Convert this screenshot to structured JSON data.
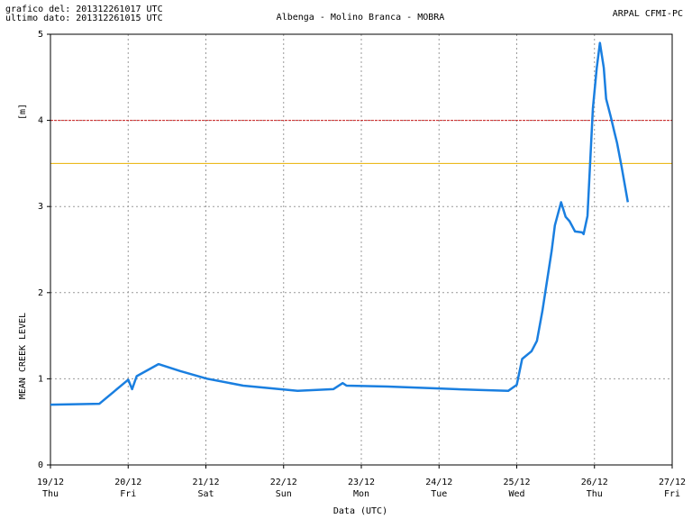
{
  "chart_data": {
    "type": "line",
    "header_left": [
      "grafico del: 201312261017 UTC",
      "ultimo dato: 201312261015 UTC"
    ],
    "title": "Albenga - Molino Branca - MOBRA",
    "header_right": "ARPAL CFMI-PC",
    "y_unit_label": "[m]",
    "y_label": "MEAN CREEK LEVEL",
    "x_label": "Data (UTC)",
    "xlim": [
      0,
      8
    ],
    "xticks": [
      {
        "value": 0,
        "label": "19/12"
      },
      {
        "value": 1,
        "label": "20/12"
      },
      {
        "value": 2,
        "label": "21/12"
      },
      {
        "value": 3,
        "label": "22/12"
      },
      {
        "value": 4,
        "label": "23/12"
      },
      {
        "value": 5,
        "label": "24/12"
      },
      {
        "value": 6,
        "label": "25/12"
      },
      {
        "value": 7,
        "label": "26/12"
      },
      {
        "value": 8,
        "label": "27/12"
      }
    ],
    "xtick_weekdays": [
      "Thu",
      "Fri",
      "Sat",
      "Sun",
      "Mon",
      "Tue",
      "Wed",
      "Thu",
      "Fri"
    ],
    "ylim": [
      0,
      5
    ],
    "yticks": [
      0,
      1,
      2,
      3,
      4,
      5
    ],
    "grid": true,
    "thresholds": [
      {
        "value": 4,
        "color": "#cc2222"
      },
      {
        "value": 3.5,
        "color": "#e8b000"
      }
    ],
    "color": "#1a7fe0",
    "x": [
      0,
      0.63,
      1.0,
      1.05,
      1.11,
      1.39,
      1.67,
      2.02,
      2.48,
      3.18,
      3.64,
      3.76,
      3.81,
      4.34,
      4.92,
      5.5,
      5.89,
      6.0,
      6.07,
      6.19,
      6.26,
      6.33,
      6.45,
      6.49,
      6.57,
      6.63,
      6.68,
      6.75,
      6.84,
      6.86,
      6.91,
      6.98,
      7.03,
      7.07,
      7.12,
      7.15,
      7.21,
      7.26,
      7.29,
      7.35,
      7.43
    ],
    "values": [
      0.7,
      0.71,
      0.99,
      0.88,
      1.03,
      1.17,
      1.09,
      1.0,
      0.92,
      0.86,
      0.88,
      0.95,
      0.92,
      0.91,
      0.89,
      0.87,
      0.86,
      0.93,
      1.23,
      1.32,
      1.44,
      1.79,
      2.49,
      2.78,
      3.05,
      2.88,
      2.83,
      2.71,
      2.7,
      2.68,
      2.89,
      4.14,
      4.61,
      4.9,
      4.61,
      4.25,
      4.04,
      3.85,
      3.74,
      3.46,
      3.05
    ]
  }
}
